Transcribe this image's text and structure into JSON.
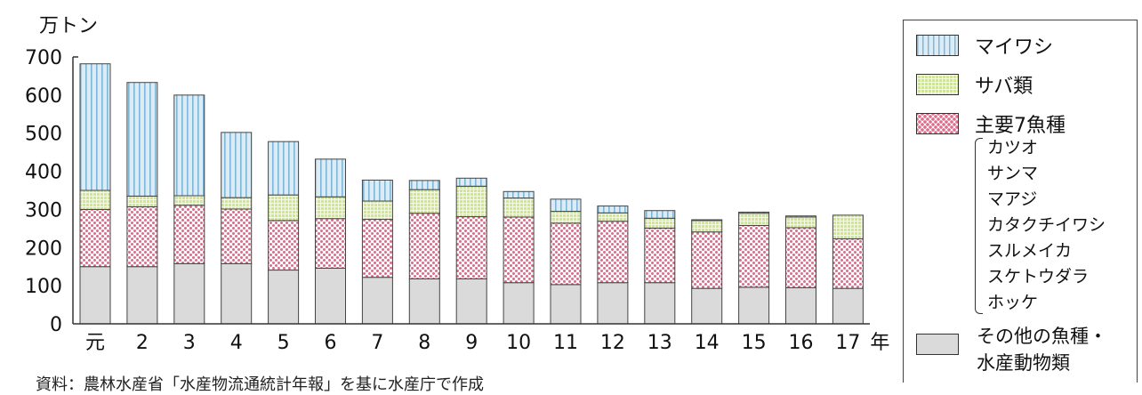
{
  "chart_data": {
    "type": "bar",
    "stacked": true,
    "unit_label": "万トン",
    "x_suffix": "年",
    "categories": [
      "元",
      "2",
      "3",
      "4",
      "5",
      "6",
      "7",
      "8",
      "9",
      "10",
      "11",
      "12",
      "13",
      "14",
      "15",
      "16",
      "17"
    ],
    "y_ticks": [
      "0",
      "100",
      "200",
      "300",
      "400",
      "500",
      "600",
      "700"
    ],
    "ylim": [
      0,
      700
    ],
    "series": [
      {
        "name": "その他の魚種・水産動物類",
        "values": [
          150,
          150,
          158,
          158,
          141,
          146,
          122,
          118,
          118,
          108,
          103,
          108,
          108,
          93,
          96,
          95,
          93
        ]
      },
      {
        "name": "主要7魚種",
        "values": [
          150,
          157,
          153,
          143,
          130,
          130,
          152,
          172,
          163,
          172,
          161,
          161,
          143,
          148,
          162,
          157,
          130
        ]
      },
      {
        "name": "サバ類",
        "values": [
          50,
          28,
          25,
          30,
          67,
          57,
          48,
          62,
          80,
          50,
          31,
          22,
          26,
          30,
          32,
          28,
          62
        ]
      },
      {
        "name": "マイワシ",
        "values": [
          332,
          298,
          264,
          171,
          140,
          99,
          55,
          24,
          21,
          17,
          32,
          18,
          20,
          2,
          3,
          3,
          0
        ]
      }
    ],
    "legend_placement": "right",
    "major_species": [
      "カツオ",
      "サンマ",
      "マアジ",
      "カタクチイワシ",
      "スルメイカ",
      "スケトウダラ",
      "ホッケ"
    ],
    "source_note": "資料：農林水産省「水産物流通統計年報」を基に水産庁で作成"
  },
  "legend": {
    "sardine": "マイワシ",
    "mackerel": "サバ類",
    "major": "主要7魚種",
    "other_line1": "その他の魚種・",
    "other_line2": "水産動物類"
  }
}
